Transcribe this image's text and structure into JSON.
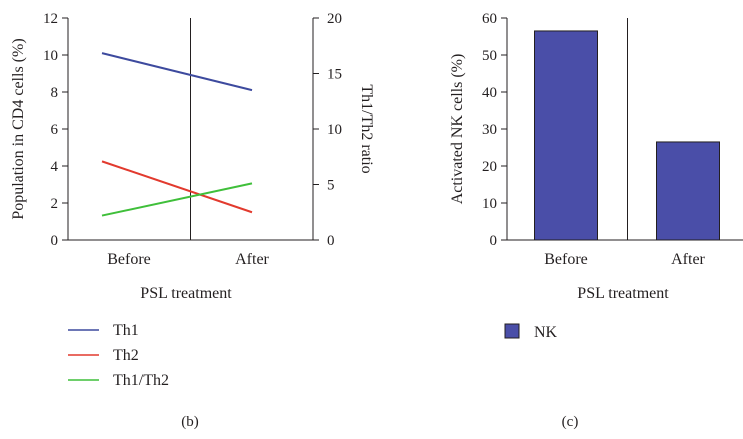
{
  "chart_data": [
    {
      "type": "line",
      "panel_label": "(b)",
      "xlabel": "PSL treatment",
      "ylabel": "Population in CD4 cells (%)",
      "y2label": "Th1/Th2 ratio",
      "categories": [
        "Before",
        "After"
      ],
      "ylim": [
        0,
        12
      ],
      "yticks": [
        "0",
        "2",
        "4",
        "6",
        "8",
        "10",
        "12"
      ],
      "y2lim": [
        0,
        20
      ],
      "y2ticks": [
        "0",
        "5",
        "10",
        "15",
        "20"
      ],
      "grid": false,
      "legend_position": "bottom",
      "series": [
        {
          "name": "Th1",
          "axis": "left",
          "color": "#3d4a9e",
          "values": [
            10.1,
            8.1
          ]
        },
        {
          "name": "Th2",
          "axis": "left",
          "color": "#e23a2e",
          "values": [
            4.25,
            1.5
          ]
        },
        {
          "name": "Th1/Th2",
          "axis": "right",
          "color": "#3fbf3a",
          "values": [
            2.2,
            5.1
          ]
        }
      ]
    },
    {
      "type": "bar",
      "panel_label": "(c)",
      "xlabel": "PSL treatment",
      "ylabel": "Activated NK cells (%)",
      "categories": [
        "Before",
        "After"
      ],
      "ylim": [
        0,
        60
      ],
      "yticks": [
        "0",
        "10",
        "20",
        "30",
        "40",
        "50",
        "60"
      ],
      "grid": false,
      "legend_position": "bottom",
      "series": [
        {
          "name": "NK",
          "color": "#4a4ea8",
          "values": [
            56.5,
            26.5
          ]
        }
      ]
    }
  ]
}
